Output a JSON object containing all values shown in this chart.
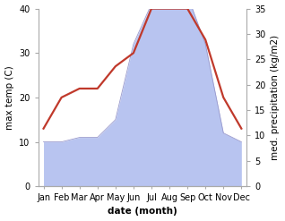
{
  "months": [
    "Jan",
    "Feb",
    "Mar",
    "Apr",
    "May",
    "Jun",
    "Jul",
    "Aug",
    "Sep",
    "Oct",
    "Nov",
    "Dec"
  ],
  "temperature": [
    13,
    20,
    22,
    22,
    27,
    30,
    40,
    40,
    40,
    33,
    20,
    13
  ],
  "precipitation": [
    10,
    10,
    11,
    11,
    15,
    32,
    41,
    43,
    43,
    32,
    12,
    10
  ],
  "temp_color": "#c0392b",
  "precip_fill_color": "#b8c4f0",
  "precip_line_color": "#9999cc",
  "temp_ylim": [
    0,
    40
  ],
  "precip_ylim": [
    0,
    35
  ],
  "temp_yticks": [
    0,
    10,
    20,
    30,
    40
  ],
  "precip_yticks": [
    0,
    5,
    10,
    15,
    20,
    25,
    30,
    35
  ],
  "ylabel_left": "max temp (C)",
  "ylabel_right": "med. precipitation (kg/m2)",
  "xlabel": "date (month)",
  "background_color": "#ffffff",
  "label_fontsize": 7.5,
  "tick_fontsize": 7,
  "line_width": 1.6,
  "xlabel_fontweight": "bold"
}
